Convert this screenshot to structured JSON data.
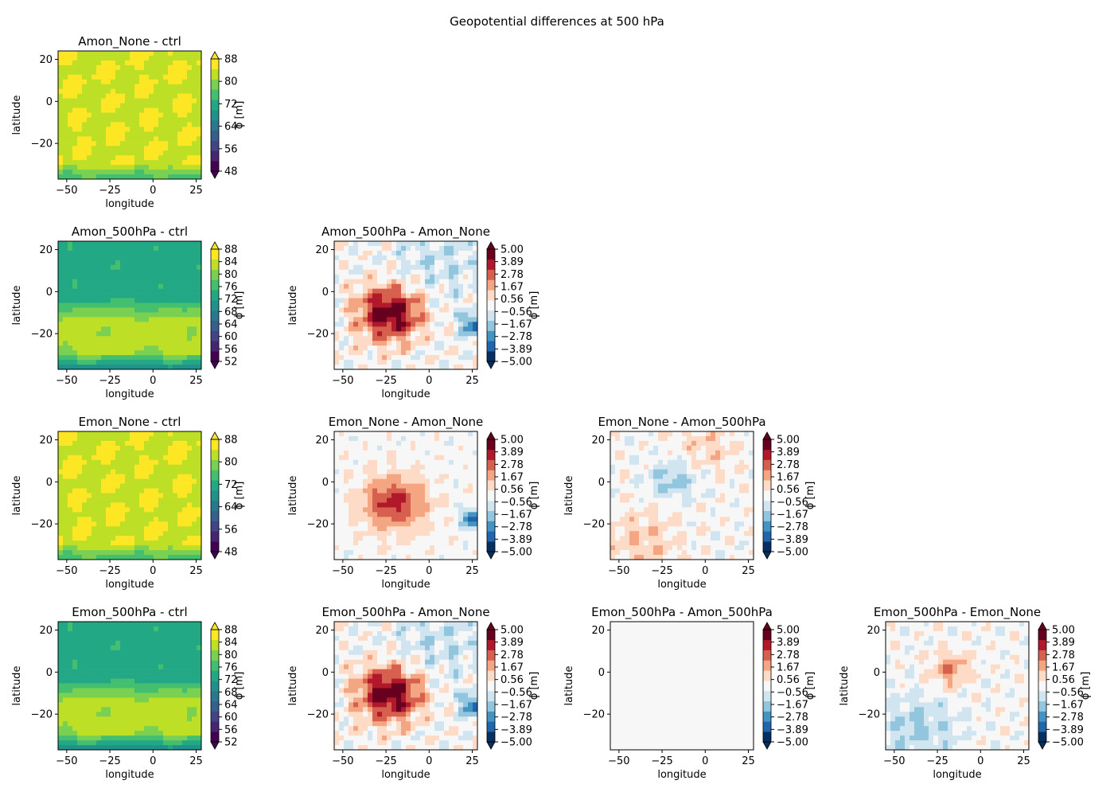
{
  "suptitle": "Geopotential differences at 500 hPa",
  "colors": {
    "viridis": [
      "#440154",
      "#482475",
      "#414487",
      "#355f8d",
      "#2a788e",
      "#21918c",
      "#22a884",
      "#44bf70",
      "#7ad151",
      "#bddf26",
      "#fde725"
    ],
    "rdbu": [
      "#053061",
      "#2166ac",
      "#4393c3",
      "#92c5de",
      "#d1e5f0",
      "#f7f7f7",
      "#fddbc7",
      "#f4a582",
      "#d6604d",
      "#b2182b",
      "#67001f"
    ]
  },
  "chart_data": [
    {
      "type": "heatmap",
      "panel": "r0c0",
      "title": "Amon_None - ctrl",
      "xlabel": "longitude",
      "ylabel": "latitude",
      "xlim": [
        -55,
        28
      ],
      "ylim": [
        -37,
        24
      ],
      "xticks": [
        "−50",
        "−25",
        "0",
        "25"
      ],
      "yticks": [
        "20",
        "0",
        "−20"
      ],
      "colorbar": {
        "label": "ϕ [m]",
        "ticks": [
          "88",
          "80",
          "72",
          "64",
          "56",
          "48"
        ],
        "cmap": "viridis",
        "extend": "both"
      },
      "field": "ctrl_a"
    },
    {
      "type": "heatmap",
      "panel": "r1c0",
      "title": "Amon_500hPa - ctrl",
      "xlabel": "longitude",
      "ylabel": "latitude",
      "xlim": [
        -55,
        28
      ],
      "ylim": [
        -37,
        24
      ],
      "xticks": [
        "−50",
        "−25",
        "0",
        "25"
      ],
      "yticks": [
        "20",
        "0",
        "−20"
      ],
      "colorbar": {
        "label": "ϕ [m]",
        "ticks": [
          "88",
          "84",
          "80",
          "76",
          "72",
          "68",
          "64",
          "60",
          "56",
          "52"
        ],
        "cmap": "viridis",
        "extend": "both"
      },
      "field": "ctrl_b"
    },
    {
      "type": "heatmap",
      "panel": "r1c1",
      "title": "Amon_500hPa - Amon_None",
      "xlabel": "longitude",
      "ylabel": "latitude",
      "xlim": [
        -55,
        28
      ],
      "ylim": [
        -37,
        24
      ],
      "xticks": [
        "−50",
        "−25",
        "0",
        "25"
      ],
      "yticks": [
        "20",
        "0",
        "−20"
      ],
      "colorbar": {
        "label": "ϕ [m]",
        "ticks": [
          "5.00",
          "3.89",
          "2.78",
          "1.67",
          "0.56",
          "−0.56",
          "−1.67",
          "−2.78",
          "−3.89",
          "−5.00"
        ],
        "cmap": "rdbu",
        "extend": "both"
      },
      "field": "diff_strong"
    },
    {
      "type": "heatmap",
      "panel": "r2c0",
      "title": "Emon_None - ctrl",
      "xlabel": "longitude",
      "ylabel": "latitude",
      "xlim": [
        -55,
        28
      ],
      "ylim": [
        -37,
        24
      ],
      "xticks": [
        "−50",
        "−25",
        "0",
        "25"
      ],
      "yticks": [
        "20",
        "0",
        "−20"
      ],
      "colorbar": {
        "label": "ϕ [m]",
        "ticks": [
          "88",
          "80",
          "72",
          "64",
          "56",
          "48"
        ],
        "cmap": "viridis",
        "extend": "both"
      },
      "field": "ctrl_a"
    },
    {
      "type": "heatmap",
      "panel": "r2c1",
      "title": "Emon_None - Amon_None",
      "xlabel": "longitude",
      "ylabel": "latitude",
      "xlim": [
        -55,
        28
      ],
      "ylim": [
        -37,
        24
      ],
      "xticks": [
        "−50",
        "−25",
        "0",
        "25"
      ],
      "yticks": [
        "20",
        "0",
        "−20"
      ],
      "colorbar": {
        "label": "ϕ [m]",
        "ticks": [
          "5.00",
          "3.89",
          "2.78",
          "1.67",
          "0.56",
          "−0.56",
          "−1.67",
          "−2.78",
          "−3.89",
          "−5.00"
        ],
        "cmap": "rdbu",
        "extend": "both"
      },
      "field": "diff_medium"
    },
    {
      "type": "heatmap",
      "panel": "r2c2",
      "title": "Emon_None - Amon_500hPa",
      "xlabel": "longitude",
      "ylabel": "latitude",
      "xlim": [
        -55,
        28
      ],
      "ylim": [
        -37,
        24
      ],
      "xticks": [
        "−50",
        "−25",
        "0",
        "25"
      ],
      "yticks": [
        "20",
        "0",
        "−20"
      ],
      "colorbar": {
        "label": "ϕ [m]",
        "ticks": [
          "5.00",
          "3.89",
          "2.78",
          "1.67",
          "0.56",
          "−0.56",
          "−1.67",
          "−2.78",
          "−3.89",
          "−5.00"
        ],
        "cmap": "rdbu",
        "extend": "both"
      },
      "field": "diff_negative"
    },
    {
      "type": "heatmap",
      "panel": "r3c0",
      "title": "Emon_500hPa - ctrl",
      "xlabel": "longitude",
      "ylabel": "latitude",
      "xlim": [
        -55,
        28
      ],
      "ylim": [
        -37,
        24
      ],
      "xticks": [
        "−50",
        "−25",
        "0",
        "25"
      ],
      "yticks": [
        "20",
        "0",
        "−20"
      ],
      "colorbar": {
        "label": "ϕ [m]",
        "ticks": [
          "88",
          "84",
          "80",
          "76",
          "72",
          "68",
          "64",
          "60",
          "56",
          "52"
        ],
        "cmap": "viridis",
        "extend": "both"
      },
      "field": "ctrl_b"
    },
    {
      "type": "heatmap",
      "panel": "r3c1",
      "title": "Emon_500hPa - Amon_None",
      "xlabel": "longitude",
      "ylabel": "latitude",
      "xlim": [
        -55,
        28
      ],
      "ylim": [
        -37,
        24
      ],
      "xticks": [
        "−50",
        "−25",
        "0",
        "25"
      ],
      "yticks": [
        "20",
        "0",
        "−20"
      ],
      "colorbar": {
        "label": "ϕ [m]",
        "ticks": [
          "5.00",
          "3.89",
          "2.78",
          "1.67",
          "0.56",
          "−0.56",
          "−1.67",
          "−2.78",
          "−3.89",
          "−5.00"
        ],
        "cmap": "rdbu",
        "extend": "both"
      },
      "field": "diff_strong"
    },
    {
      "type": "heatmap",
      "panel": "r3c2",
      "title": "Emon_500hPa - Amon_500hPa",
      "xlabel": "longitude",
      "ylabel": "latitude",
      "xlim": [
        -55,
        28
      ],
      "ylim": [
        -37,
        24
      ],
      "xticks": [
        "−50",
        "−25",
        "0",
        "25"
      ],
      "yticks": [
        "20",
        "0",
        "−20"
      ],
      "colorbar": {
        "label": "ϕ [m]",
        "ticks": [
          "5.00",
          "3.89",
          "2.78",
          "1.67",
          "0.56",
          "−0.56",
          "−1.67",
          "−2.78",
          "−3.89",
          "−5.00"
        ],
        "cmap": "rdbu",
        "extend": "both"
      },
      "field": "zero"
    },
    {
      "type": "heatmap",
      "panel": "r3c3",
      "title": "Emon_500hPa - Emon_None",
      "xlabel": "longitude",
      "ylabel": "latitude",
      "xlim": [
        -55,
        28
      ],
      "ylim": [
        -37,
        24
      ],
      "xticks": [
        "−50",
        "−25",
        "0",
        "25"
      ],
      "yticks": [
        "20",
        "0",
        "−20"
      ],
      "colorbar": {
        "label": "ϕ [m]",
        "ticks": [
          "5.00",
          "3.89",
          "2.78",
          "1.67",
          "0.56",
          "−0.56",
          "−1.67",
          "−2.78",
          "−3.89",
          "−5.00"
        ],
        "cmap": "rdbu",
        "extend": "both"
      },
      "field": "diff_positive"
    }
  ]
}
